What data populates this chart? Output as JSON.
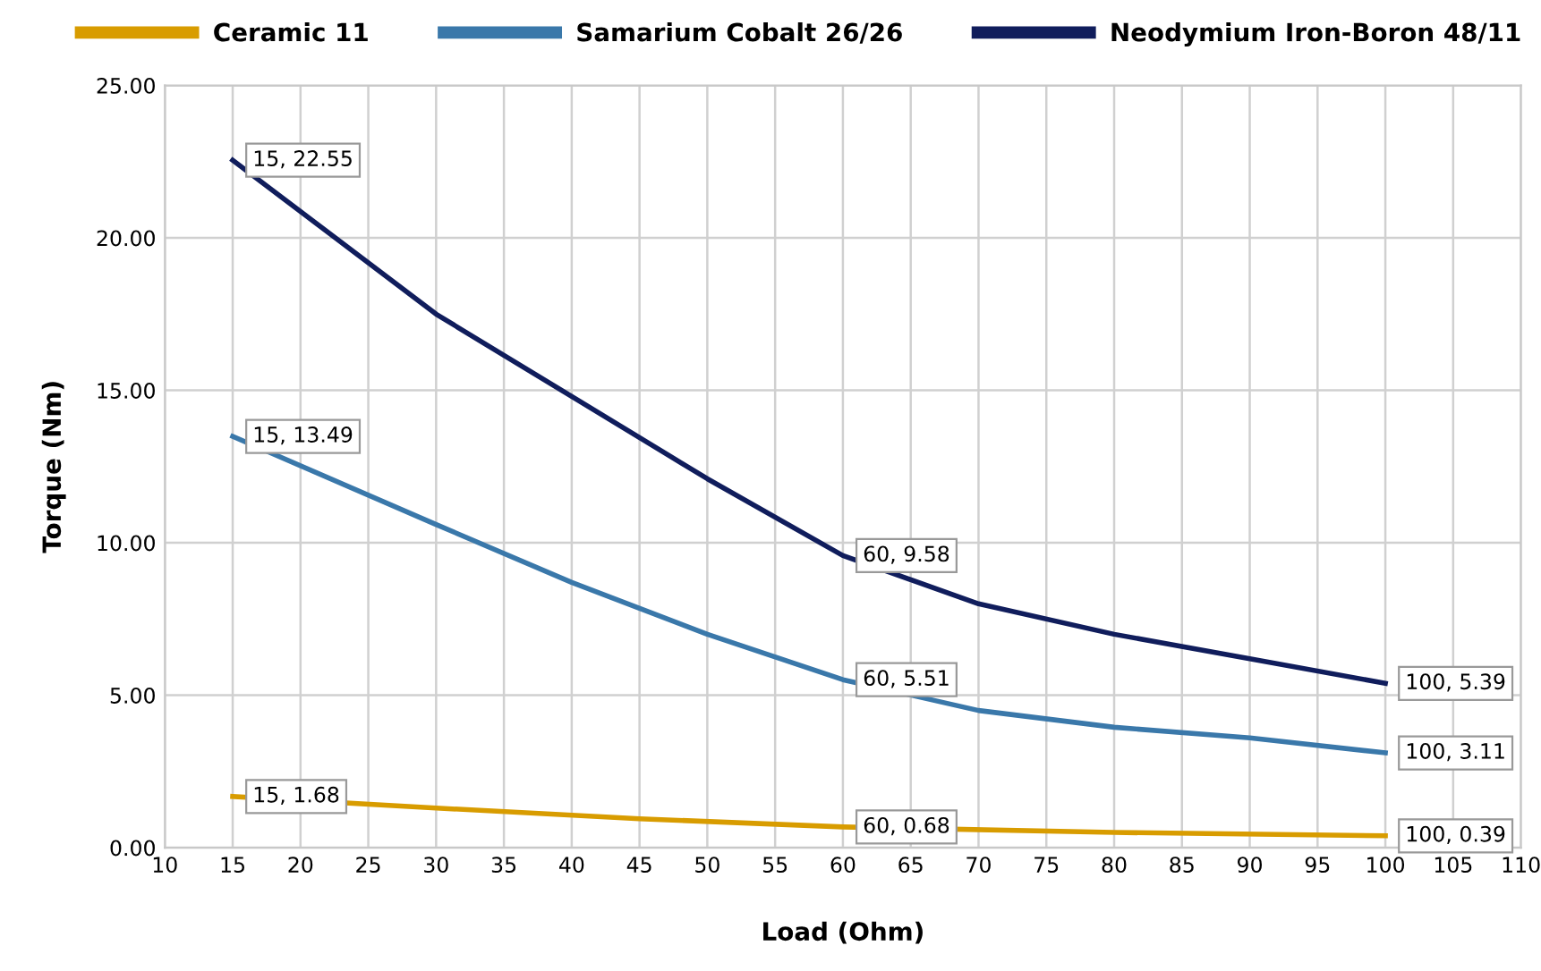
{
  "chart_data": {
    "type": "line",
    "xlabel": "Load (Ohm)",
    "ylabel": "Torque (Nm)",
    "xlim": [
      10,
      110
    ],
    "xticks": [
      10,
      15,
      20,
      25,
      30,
      35,
      40,
      45,
      50,
      55,
      60,
      65,
      70,
      75,
      80,
      85,
      90,
      95,
      100,
      105,
      110
    ],
    "ylim": [
      0,
      25
    ],
    "yticks": [
      {
        "value": 0,
        "label": "0.00"
      },
      {
        "value": 5,
        "label": "5.00"
      },
      {
        "value": 10,
        "label": "10.00"
      },
      {
        "value": 15,
        "label": "15.00"
      },
      {
        "value": 20,
        "label": "20.00"
      },
      {
        "value": 25,
        "label": "25.00"
      }
    ],
    "grid": true,
    "legend": "top",
    "marker": "none",
    "line_style": "solid",
    "series": [
      {
        "name": "Ceramic 11",
        "color": "#d89c00",
        "x": [
          15,
          30,
          45,
          60,
          80,
          100
        ],
        "values": [
          1.68,
          1.3,
          0.95,
          0.68,
          0.5,
          0.39
        ],
        "value_labels": [
          "15, 1.68",
          null,
          null,
          "60, 0.68",
          null,
          "100, 0.39"
        ]
      },
      {
        "name": "Samarium Cobalt 26/26",
        "color": "#3a78aa",
        "x": [
          15,
          30,
          40,
          50,
          60,
          70,
          80,
          90,
          100
        ],
        "values": [
          13.49,
          10.6,
          8.7,
          7.0,
          5.51,
          4.5,
          3.95,
          3.6,
          3.11
        ],
        "value_labels": [
          "15, 13.49",
          null,
          null,
          null,
          "60, 5.51",
          null,
          null,
          null,
          "100, 3.11"
        ]
      },
      {
        "name": "Neodymium Iron-Boron 48/11",
        "color": "#101d5c",
        "x": [
          15,
          30,
          40,
          50,
          60,
          70,
          80,
          90,
          100
        ],
        "values": [
          22.55,
          17.5,
          14.8,
          12.1,
          9.58,
          8.0,
          7.0,
          6.2,
          5.39
        ],
        "value_labels": [
          "15, 22.55",
          null,
          null,
          null,
          "60, 9.58",
          null,
          null,
          null,
          "100, 5.39"
        ]
      }
    ]
  }
}
